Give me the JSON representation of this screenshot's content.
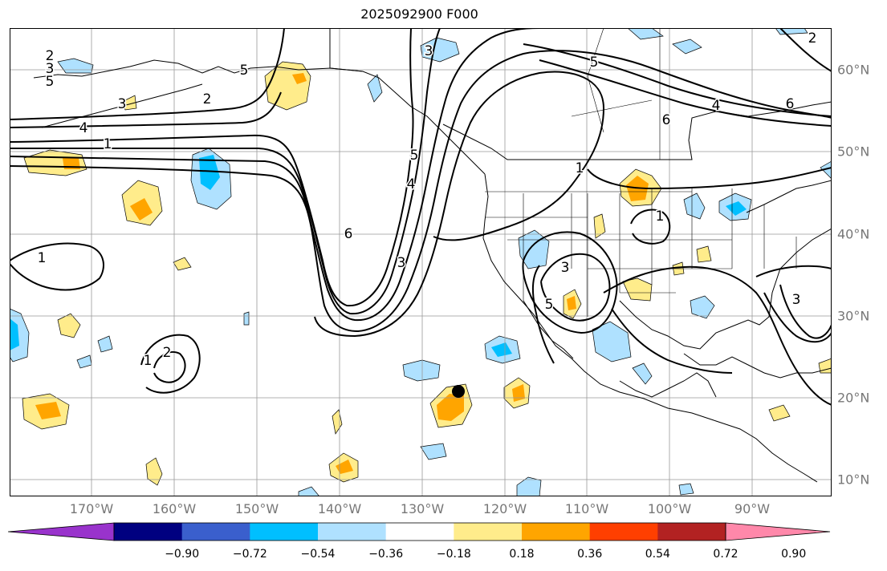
{
  "title": "2025092900 F000",
  "lon_labels": [
    "170°W",
    "160°W",
    "150°W",
    "140°W",
    "130°W",
    "120°W",
    "110°W",
    "100°W",
    "90°W"
  ],
  "lat_labels": [
    "60°N",
    "50°N",
    "40°N",
    "30°N",
    "20°N",
    "10°N"
  ],
  "colorbar": {
    "ticks": [
      "−0.90",
      "−0.72",
      "−0.54",
      "−0.36",
      "−0.18",
      "0.18",
      "0.36",
      "0.54",
      "0.72",
      "0.90"
    ],
    "colors": [
      "#9933cc",
      "#000080",
      "#3a5fcd",
      "#00bfff",
      "#afe1ff",
      "#ffffff",
      "#ffec8b",
      "#ffa500",
      "#ff3f00",
      "#b22222",
      "#ff88aa"
    ]
  },
  "contour_labels": [
    "2",
    "3",
    "5",
    "4",
    "1",
    "2",
    "3",
    "5",
    "6",
    "1",
    "6",
    "4",
    "3",
    "5",
    "1",
    "1",
    "2",
    "3",
    "3",
    "1",
    "5",
    "4",
    "6",
    "3",
    "5",
    "2"
  ],
  "marker": "black-dot"
}
